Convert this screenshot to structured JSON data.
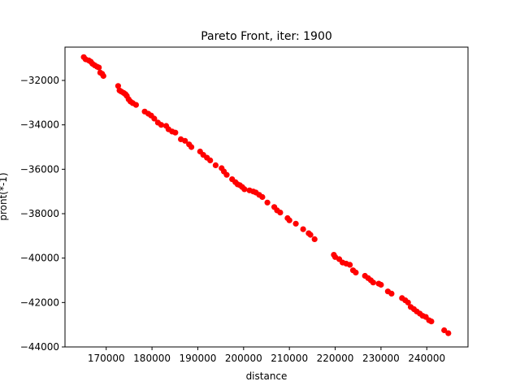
{
  "chart_data": {
    "type": "scatter",
    "title": "Pareto Front, iter: 1900",
    "xlabel": "distance",
    "ylabel": "pront(*-1)",
    "xlim": [
      161000,
      249000
    ],
    "ylim": [
      -44000,
      -30500
    ],
    "xticks": [
      170000,
      180000,
      190000,
      200000,
      210000,
      220000,
      230000,
      240000
    ],
    "yticks": [
      -44000,
      -42000,
      -40000,
      -38000,
      -36000,
      -34000,
      -32000
    ],
    "xtick_labels": [
      "170000",
      "180000",
      "190000",
      "200000",
      "210000",
      "220000",
      "230000",
      "240000"
    ],
    "ytick_labels": [
      "−44000",
      "−42000",
      "−40000",
      "−38000",
      "−36000",
      "−34000",
      "−32000"
    ],
    "grid": false,
    "marker_color": "#ff0000",
    "points": [
      [
        165100,
        -30950
      ],
      [
        165500,
        -31050
      ],
      [
        166200,
        -31100
      ],
      [
        166600,
        -31150
      ],
      [
        167000,
        -31250
      ],
      [
        167500,
        -31320
      ],
      [
        168000,
        -31380
      ],
      [
        168400,
        -31420
      ],
      [
        168700,
        -31650
      ],
      [
        169100,
        -31700
      ],
      [
        169400,
        -31800
      ],
      [
        172600,
        -32250
      ],
      [
        172900,
        -32450
      ],
      [
        173300,
        -32500
      ],
      [
        173800,
        -32560
      ],
      [
        174200,
        -32620
      ],
      [
        174500,
        -32700
      ],
      [
        174900,
        -32850
      ],
      [
        175300,
        -32950
      ],
      [
        175800,
        -33020
      ],
      [
        176500,
        -33100
      ],
      [
        178400,
        -33400
      ],
      [
        179200,
        -33500
      ],
      [
        179800,
        -33580
      ],
      [
        180500,
        -33720
      ],
      [
        181300,
        -33900
      ],
      [
        182000,
        -34000
      ],
      [
        183100,
        -34050
      ],
      [
        183600,
        -34200
      ],
      [
        184400,
        -34300
      ],
      [
        185100,
        -34350
      ],
      [
        186300,
        -34650
      ],
      [
        187200,
        -34720
      ],
      [
        188100,
        -34880
      ],
      [
        188600,
        -35000
      ],
      [
        190500,
        -35200
      ],
      [
        191200,
        -35350
      ],
      [
        192000,
        -35480
      ],
      [
        192700,
        -35600
      ],
      [
        193900,
        -35820
      ],
      [
        195200,
        -35950
      ],
      [
        195700,
        -36100
      ],
      [
        196300,
        -36250
      ],
      [
        197500,
        -36450
      ],
      [
        198200,
        -36580
      ],
      [
        198700,
        -36680
      ],
      [
        199200,
        -36720
      ],
      [
        199700,
        -36800
      ],
      [
        200200,
        -36900
      ],
      [
        201300,
        -36950
      ],
      [
        202100,
        -37000
      ],
      [
        202700,
        -37050
      ],
      [
        203400,
        -37150
      ],
      [
        204100,
        -37250
      ],
      [
        205200,
        -37500
      ],
      [
        206700,
        -37700
      ],
      [
        207300,
        -37850
      ],
      [
        208000,
        -37950
      ],
      [
        209600,
        -38200
      ],
      [
        210000,
        -38300
      ],
      [
        211400,
        -38450
      ],
      [
        213000,
        -38700
      ],
      [
        214200,
        -38880
      ],
      [
        214600,
        -38950
      ],
      [
        215500,
        -39150
      ],
      [
        219700,
        -39850
      ],
      [
        220000,
        -39950
      ],
      [
        220900,
        -40050
      ],
      [
        221600,
        -40200
      ],
      [
        222400,
        -40250
      ],
      [
        223200,
        -40300
      ],
      [
        223900,
        -40550
      ],
      [
        224500,
        -40650
      ],
      [
        226500,
        -40800
      ],
      [
        227200,
        -40900
      ],
      [
        227800,
        -41000
      ],
      [
        228300,
        -41100
      ],
      [
        229500,
        -41150
      ],
      [
        230000,
        -41200
      ],
      [
        231500,
        -41500
      ],
      [
        232300,
        -41600
      ],
      [
        234600,
        -41800
      ],
      [
        235300,
        -41900
      ],
      [
        235900,
        -42000
      ],
      [
        236500,
        -42200
      ],
      [
        237200,
        -42300
      ],
      [
        237800,
        -42400
      ],
      [
        238500,
        -42500
      ],
      [
        239100,
        -42600
      ],
      [
        239800,
        -42650
      ],
      [
        240500,
        -42800
      ],
      [
        241000,
        -42850
      ],
      [
        243800,
        -43250
      ],
      [
        244700,
        -43380
      ]
    ]
  }
}
